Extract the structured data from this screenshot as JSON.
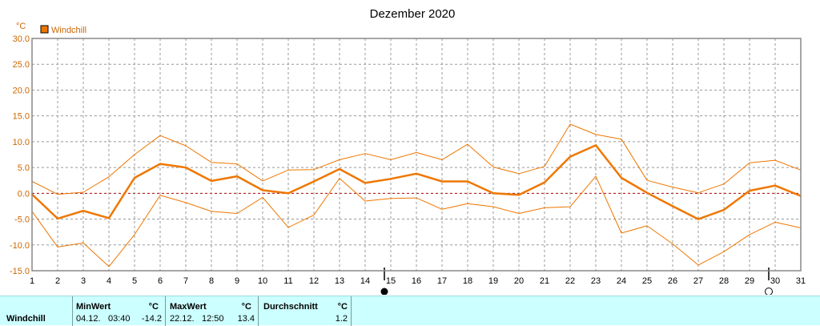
{
  "chart_data": {
    "type": "line",
    "title": "Dezember 2020",
    "unit": "°C",
    "legend": "Windchill",
    "legend_position": "top-left",
    "grid": true,
    "ylim": [
      -15,
      30
    ],
    "yticks": [
      "30.0",
      "25.0",
      "20.0",
      "15.0",
      "10.0",
      "5.0",
      "0.0",
      "-5.0",
      "-10.0",
      "-15.0"
    ],
    "x": [
      1,
      2,
      3,
      4,
      5,
      6,
      7,
      8,
      9,
      10,
      11,
      12,
      13,
      14,
      15,
      16,
      17,
      18,
      19,
      20,
      21,
      22,
      23,
      24,
      25,
      26,
      27,
      28,
      29,
      30,
      31
    ],
    "series": [
      {
        "role": "max",
        "values": [
          2.3,
          -0.2,
          0.2,
          3.2,
          7.5,
          11.2,
          9.2,
          6,
          5.7,
          2.4,
          4.5,
          4.6,
          6.5,
          7.7,
          6.5,
          7.9,
          6.5,
          9.5,
          5.1,
          3.8,
          5.2,
          13.4,
          11.4,
          10.5,
          2.5,
          1.2,
          0.1,
          1.8,
          5.9,
          6.4,
          4.5
        ]
      },
      {
        "role": "average",
        "values": [
          -0.2,
          -4.9,
          -3.4,
          -4.8,
          3,
          5.7,
          5,
          2.4,
          3.3,
          0.6,
          0,
          2.3,
          4.7,
          2,
          2.8,
          3.8,
          2.3,
          2.3,
          0,
          -0.3,
          2.1,
          7.1,
          9.3,
          3,
          0.1,
          -2.5,
          -5,
          -3.2,
          0.5,
          1.5,
          -0.5
        ]
      },
      {
        "role": "min",
        "values": [
          -3.5,
          -10.4,
          -9.6,
          -14.2,
          -8,
          -0.4,
          -1.8,
          -3.5,
          -3.9,
          -0.8,
          -6.6,
          -4.2,
          2.9,
          -1.5,
          -1,
          -0.9,
          -3.1,
          -2,
          -2.6,
          -3.9,
          -2.8,
          -2.6,
          3.3,
          -7.7,
          -6.3,
          -9.8,
          -13.9,
          -11.3,
          -8,
          -5.6,
          -6.7
        ]
      }
    ],
    "moon_phases": [
      {
        "day": 15,
        "phase": "new-moon"
      },
      {
        "day": 30,
        "phase": "full-moon"
      }
    ]
  },
  "summary": {
    "row_label": "Windchill",
    "min": {
      "header": "MinWert",
      "unit": "°C",
      "date": "04.12.",
      "time": "03:40",
      "value": "-14.2"
    },
    "max": {
      "header": "MaxWert",
      "unit": "°C",
      "date": "22.12.",
      "time": "12:50",
      "value": "13.4"
    },
    "avg": {
      "header": "Durchschnitt",
      "unit": "°C",
      "value": "1.2"
    }
  },
  "colors": {
    "series": "#ee7700",
    "axis_text": "#cc6600",
    "zero_line": "#aa0000",
    "grid": "#999999",
    "summary_bg": "#ccffff"
  }
}
